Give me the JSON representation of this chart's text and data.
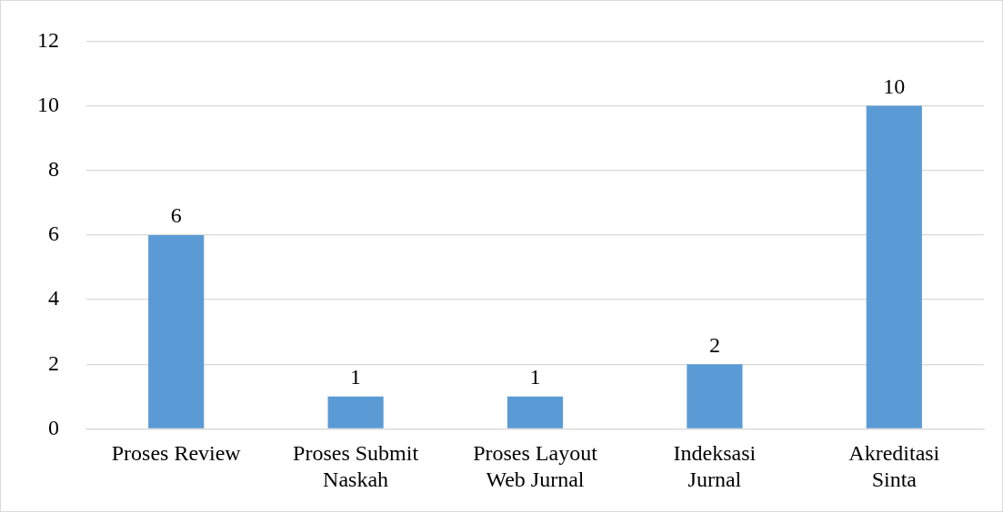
{
  "chart_data": {
    "type": "bar",
    "categories": [
      "Proses Review",
      "Proses Submit Naskah",
      "Proses Layout Web Jurnal",
      "Indeksasi Jurnal",
      "Akreditasi Sinta"
    ],
    "values": [
      6,
      1,
      1,
      2,
      10
    ],
    "color": "#5b9bd5",
    "ylim": [
      0,
      12
    ],
    "yticks": [
      0,
      2,
      4,
      6,
      8,
      10,
      12
    ],
    "grid": "y",
    "data_labels": true
  }
}
